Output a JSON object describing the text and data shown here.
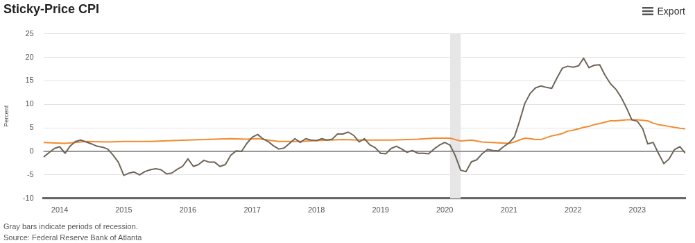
{
  "chart_data": {
    "type": "line",
    "title": "Sticky-Price CPI",
    "ylabel": "Percent",
    "x": [
      "2013-10",
      "2013-11",
      "2013-12",
      "2014-01",
      "2014-02",
      "2014-03",
      "2014-04",
      "2014-05",
      "2014-06",
      "2014-07",
      "2014-08",
      "2014-09",
      "2014-10",
      "2014-11",
      "2014-12",
      "2015-01",
      "2015-02",
      "2015-03",
      "2015-04",
      "2015-05",
      "2015-06",
      "2015-07",
      "2015-08",
      "2015-09",
      "2015-10",
      "2015-11",
      "2015-12",
      "2016-01",
      "2016-02",
      "2016-03",
      "2016-04",
      "2016-05",
      "2016-06",
      "2016-07",
      "2016-08",
      "2016-09",
      "2016-10",
      "2016-11",
      "2016-12",
      "2017-01",
      "2017-02",
      "2017-03",
      "2017-04",
      "2017-05",
      "2017-06",
      "2017-07",
      "2017-08",
      "2017-09",
      "2017-10",
      "2017-11",
      "2017-12",
      "2018-01",
      "2018-02",
      "2018-03",
      "2018-04",
      "2018-05",
      "2018-06",
      "2018-07",
      "2018-08",
      "2018-09",
      "2018-10",
      "2018-11",
      "2018-12",
      "2019-01",
      "2019-02",
      "2019-03",
      "2019-04",
      "2019-05",
      "2019-06",
      "2019-07",
      "2019-08",
      "2019-09",
      "2019-10",
      "2019-11",
      "2019-12",
      "2020-01",
      "2020-02",
      "2020-03",
      "2020-04",
      "2020-05",
      "2020-06",
      "2020-07",
      "2020-08",
      "2020-09",
      "2020-10",
      "2020-11",
      "2020-12",
      "2021-01",
      "2021-02",
      "2021-03",
      "2021-04",
      "2021-05",
      "2021-06",
      "2021-07",
      "2021-08",
      "2021-09",
      "2021-10",
      "2021-11",
      "2021-12",
      "2022-01",
      "2022-02",
      "2022-03",
      "2022-04",
      "2022-05",
      "2022-06",
      "2022-07",
      "2022-08",
      "2022-09",
      "2022-10",
      "2022-11",
      "2022-12",
      "2023-01",
      "2023-02",
      "2023-03",
      "2023-04",
      "2023-05",
      "2023-06",
      "2023-07",
      "2023-08",
      "2023-09",
      "2023-10"
    ],
    "series": [
      {
        "color": "#6e6558",
        "values": [
          -1.2,
          -0.3,
          0.6,
          1.0,
          -0.4,
          1.1,
          2.1,
          2.4,
          2.0,
          1.6,
          1.1,
          0.9,
          0.5,
          -0.8,
          -2.3,
          -5.1,
          -4.6,
          -4.4,
          -5.0,
          -4.3,
          -3.9,
          -3.7,
          -3.9,
          -4.8,
          -4.6,
          -3.8,
          -3.2,
          -1.6,
          -3.2,
          -2.8,
          -1.9,
          -2.3,
          -2.3,
          -3.2,
          -2.8,
          -0.8,
          0.1,
          0.0,
          1.7,
          3.0,
          3.6,
          2.7,
          2.1,
          1.2,
          0.5,
          0.7,
          1.7,
          2.7,
          1.9,
          2.7,
          2.4,
          2.3,
          2.7,
          2.4,
          2.6,
          3.7,
          3.7,
          4.1,
          3.4,
          2.0,
          2.7,
          1.4,
          0.8,
          -0.4,
          -0.5,
          0.6,
          1.1,
          0.5,
          -0.2,
          0.2,
          -0.4,
          -0.4,
          -0.5,
          0.5,
          1.3,
          1.9,
          1.3,
          -0.9,
          -4.0,
          -4.3,
          -2.2,
          -1.8,
          -0.5,
          0.4,
          0.2,
          0.1,
          1.0,
          1.8,
          3.1,
          6.3,
          10.2,
          12.3,
          13.5,
          13.9,
          13.6,
          13.4,
          15.6,
          17.7,
          18.1,
          17.9,
          18.2,
          19.8,
          17.8,
          18.3,
          18.4,
          16.2,
          14.4,
          13.2,
          11.5,
          9.2,
          6.7,
          6.4,
          4.8,
          1.6,
          1.9,
          -0.4,
          -2.6,
          -1.6,
          0.4,
          1.0,
          -0.4
        ]
      },
      {
        "color": "#f58a2f",
        "x": [
          "2013-10",
          "2014-02",
          "2014-06",
          "2014-10",
          "2015-01",
          "2015-06",
          "2015-10",
          "2016-01",
          "2016-06",
          "2016-09",
          "2016-12",
          "2017-02",
          "2017-06",
          "2017-10",
          "2018-01",
          "2018-06",
          "2018-10",
          "2019-03",
          "2019-08",
          "2019-11",
          "2020-02",
          "2020-04",
          "2020-06",
          "2020-08",
          "2020-11",
          "2021-01",
          "2021-02",
          "2021-03",
          "2021-04",
          "2021-05",
          "2021-06",
          "2021-07",
          "2021-08",
          "2021-09",
          "2021-10",
          "2021-11",
          "2021-12",
          "2022-01",
          "2022-02",
          "2022-03",
          "2022-04",
          "2022-05",
          "2022-06",
          "2022-07",
          "2022-08",
          "2022-09",
          "2022-10",
          "2022-11",
          "2022-12",
          "2023-01",
          "2023-02",
          "2023-03",
          "2023-04",
          "2023-05",
          "2023-06",
          "2023-07",
          "2023-08",
          "2023-09",
          "2023-10"
        ],
        "values": [
          1.9,
          1.7,
          2.1,
          2.0,
          2.1,
          2.1,
          2.3,
          2.4,
          2.6,
          2.7,
          2.6,
          2.7,
          2.1,
          2.1,
          2.3,
          2.5,
          2.4,
          2.4,
          2.6,
          2.8,
          2.8,
          2.2,
          2.4,
          2.0,
          1.8,
          1.7,
          2.0,
          2.4,
          2.8,
          2.7,
          2.5,
          2.5,
          2.9,
          3.3,
          3.5,
          3.8,
          4.3,
          4.5,
          4.8,
          5.1,
          5.3,
          5.7,
          5.9,
          6.2,
          6.5,
          6.5,
          6.6,
          6.7,
          6.7,
          6.7,
          6.6,
          6.5,
          6.0,
          5.7,
          5.5,
          5.3,
          5.1,
          4.9,
          4.8
        ]
      }
    ],
    "xlim": [
      "2013-10",
      "2023-10"
    ],
    "xticks": [
      "2014",
      "2015",
      "2016",
      "2017",
      "2018",
      "2019",
      "2020",
      "2021",
      "2022",
      "2023"
    ],
    "ylim": [
      -10,
      25
    ],
    "yticks": [
      -10,
      -5,
      0,
      5,
      10,
      15,
      20,
      25
    ],
    "bands": [
      {
        "axis": "x",
        "from": "2020-02",
        "to": "2020-04",
        "color": "#e6e6e6"
      }
    ],
    "ref_lines": [
      {
        "axis": "y",
        "value": 0,
        "color": "#999999"
      }
    ],
    "grid": "y",
    "legend": false,
    "marker": "none",
    "line_style": "solid",
    "annotations": [
      "Gray bars indicate periods of recession.",
      "Source: Federal Reserve Bank of Atlanta",
      "Export"
    ]
  }
}
